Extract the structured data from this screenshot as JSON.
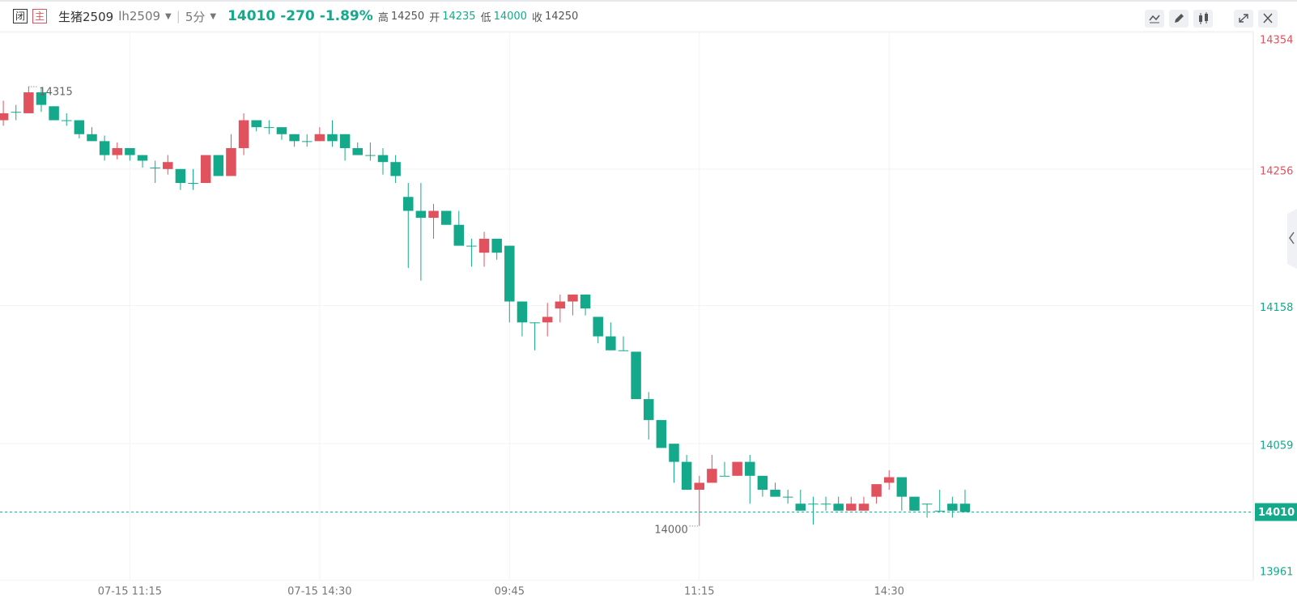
{
  "header": {
    "closed": "闭",
    "main": "主",
    "name": "生猪2509",
    "code": "lh2509",
    "period": "5分",
    "change": -270,
    "change_pct": "-1.89%",
    "stats": [
      {
        "label": "高",
        "value": 14250
      },
      {
        "label": "开",
        "value": 14235
      },
      {
        "label": "低",
        "value": 14000
      },
      {
        "label": "收",
        "value": 14250
      }
    ]
  },
  "chart_data": {
    "type": "candlestick",
    "categories": [
      null,
      null,
      null,
      null,
      null,
      null,
      null,
      null,
      null,
      null,
      "07-15 11:15",
      null,
      null,
      null,
      null,
      null,
      null,
      null,
      null,
      null,
      null,
      null,
      null,
      null,
      null,
      "07-15 14:30",
      null,
      null,
      null,
      null,
      null,
      null,
      null,
      null,
      null,
      null,
      null,
      null,
      null,
      null,
      "09:45",
      null,
      null,
      null,
      null,
      null,
      null,
      null,
      null,
      null,
      null,
      null,
      null,
      null,
      null,
      "11:15",
      null,
      null,
      null,
      null,
      null,
      null,
      null,
      null,
      null,
      null,
      null,
      null,
      null,
      null,
      "14:30",
      null,
      null,
      null,
      null,
      null,
      null
    ],
    "open": [
      14291,
      14297,
      14296,
      14311,
      14301,
      14291,
      14291,
      14281,
      14276,
      14266,
      14271,
      14266,
      14257,
      14256,
      14256,
      14246,
      14246,
      14266,
      14251,
      14271,
      14291,
      14286,
      14286,
      14281,
      14276,
      14276,
      14281,
      14281,
      14271,
      14266,
      14266,
      14261,
      14236,
      14226,
      14221,
      14226,
      14216,
      14201,
      14196,
      14206,
      14201,
      14161,
      14146,
      14146,
      14156,
      14161,
      14166,
      14150,
      14136,
      14126,
      14125,
      14091,
      14076,
      14059,
      14046,
      14026,
      14031,
      14036,
      14036,
      14046,
      14036,
      14026,
      14021,
      14016,
      14016,
      14016,
      14016,
      14011,
      14011,
      14021,
      14031,
      14035,
      14021,
      14016,
      14011,
      14016,
      14016
    ],
    "high": [
      14305,
      14302,
      14315,
      14314,
      14301,
      14296,
      14291,
      14286,
      14280,
      14275,
      14271,
      14266,
      14262,
      14266,
      14256,
      14256,
      14266,
      14266,
      14281,
      14296,
      14291,
      14291,
      14286,
      14281,
      14281,
      14286,
      14291,
      14281,
      14275,
      14275,
      14271,
      14266,
      14246,
      14246,
      14231,
      14226,
      14226,
      14206,
      14211,
      14206,
      14201,
      14161,
      14146,
      14160,
      14166,
      14166,
      14166,
      14150,
      14146,
      14136,
      14125,
      14096,
      14076,
      14059,
      14051,
      14036,
      14051,
      14046,
      14046,
      14051,
      14036,
      14031,
      14026,
      14026,
      14021,
      14021,
      14021,
      14021,
      14021,
      14030,
      14040,
      14035,
      14021,
      14016,
      14026,
      14021,
      14026
    ],
    "low": [
      14287,
      14291,
      14296,
      14297,
      14291,
      14287,
      14278,
      14276,
      14262,
      14263,
      14262,
      14257,
      14246,
      14252,
      14241,
      14241,
      14246,
      14251,
      14251,
      14266,
      14283,
      14281,
      14277,
      14272,
      14272,
      14276,
      14272,
      14262,
      14266,
      14262,
      14252,
      14246,
      14185,
      14176,
      14206,
      14216,
      14201,
      14186,
      14186,
      14191,
      14146,
      14136,
      14126,
      14136,
      14146,
      14151,
      14151,
      14131,
      14126,
      14126,
      14091,
      14062,
      14056,
      14031,
      14026,
      14000,
      14031,
      14036,
      14036,
      14016,
      14021,
      14021,
      14016,
      14011,
      14001,
      14011,
      14011,
      14011,
      14011,
      14016,
      14026,
      14011,
      14011,
      14006,
      14011,
      14006,
      14010
    ],
    "close": [
      14296,
      14297,
      14311,
      14302,
      14291,
      14291,
      14281,
      14276,
      14266,
      14271,
      14266,
      14262,
      14257,
      14261,
      14246,
      14246,
      14266,
      14251,
      14271,
      14291,
      14286,
      14286,
      14281,
      14276,
      14276,
      14281,
      14276,
      14271,
      14266,
      14266,
      14261,
      14251,
      14226,
      14221,
      14226,
      14216,
      14201,
      14201,
      14206,
      14196,
      14161,
      14146,
      14146,
      14150,
      14161,
      14166,
      14156,
      14136,
      14126,
      14126,
      14091,
      14076,
      14056,
      14046,
      14026,
      14031,
      14041,
      14036,
      14046,
      14036,
      14026,
      14021,
      14021,
      14011,
      14016,
      14016,
      14011,
      14016,
      14016,
      14030,
      14035,
      14021,
      14011,
      14016,
      14011,
      14011,
      14010
    ],
    "up_color": "#e0525e",
    "down_color": "#14a98a",
    "ylim": [
      13961,
      14354
    ],
    "yticks": [
      14354,
      14256,
      14158,
      14059,
      13961
    ],
    "grid": true,
    "last_price": 14010,
    "max_label": 14315,
    "min_label": 14000
  }
}
